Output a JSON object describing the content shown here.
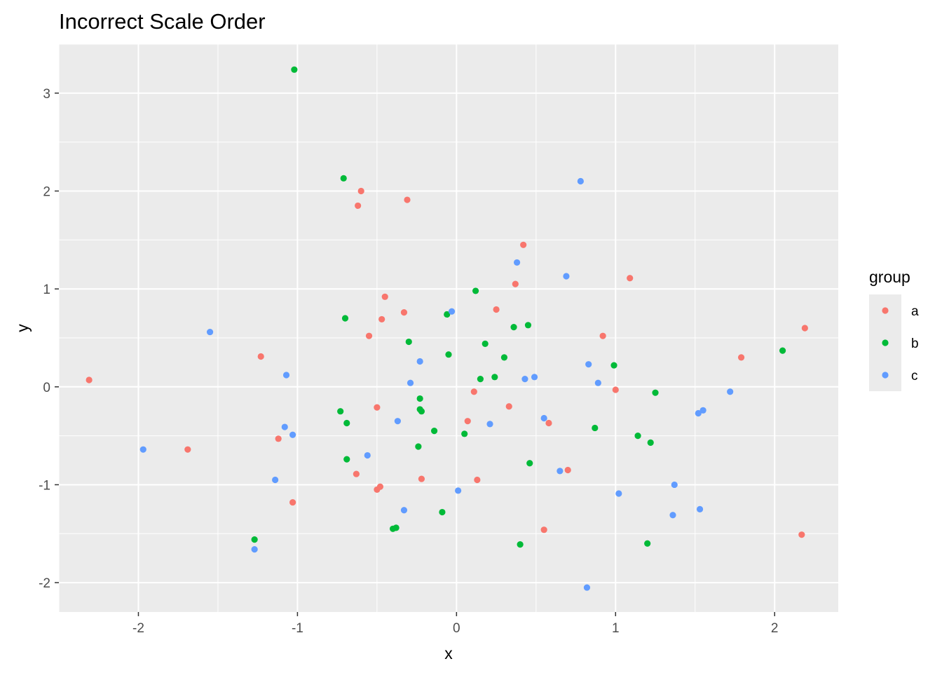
{
  "chart_data": {
    "type": "scatter",
    "title": "Incorrect Scale Order",
    "xlabel": "x",
    "ylabel": "y",
    "xlim": [
      -2.5,
      2.4
    ],
    "ylim": [
      -2.3,
      3.5
    ],
    "x_ticks": [
      -2,
      -1,
      0,
      1,
      2
    ],
    "y_ticks": [
      -2,
      -1,
      0,
      1,
      2,
      3
    ],
    "grid": true,
    "legend": {
      "title": "group",
      "position": "right"
    },
    "series": [
      {
        "name": "a",
        "color": "#F8766D",
        "points": [
          [
            -2.31,
            0.07
          ],
          [
            -1.69,
            -0.64
          ],
          [
            -1.23,
            0.31
          ],
          [
            -1.12,
            -0.53
          ],
          [
            -1.03,
            -1.18
          ],
          [
            -0.63,
            -0.89
          ],
          [
            -0.62,
            1.85
          ],
          [
            -0.6,
            2.0
          ],
          [
            -0.55,
            0.52
          ],
          [
            -0.5,
            -0.21
          ],
          [
            -0.5,
            -1.05
          ],
          [
            -0.48,
            -1.02
          ],
          [
            -0.47,
            0.69
          ],
          [
            -0.45,
            0.92
          ],
          [
            -0.33,
            0.76
          ],
          [
            -0.31,
            1.91
          ],
          [
            -0.22,
            -0.94
          ],
          [
            0.07,
            -0.35
          ],
          [
            0.11,
            -0.05
          ],
          [
            0.13,
            -0.95
          ],
          [
            0.25,
            0.79
          ],
          [
            0.33,
            -0.2
          ],
          [
            0.37,
            1.05
          ],
          [
            0.42,
            1.45
          ],
          [
            0.55,
            -1.46
          ],
          [
            0.58,
            -0.37
          ],
          [
            0.7,
            -0.85
          ],
          [
            0.92,
            0.52
          ],
          [
            1.0,
            -0.03
          ],
          [
            1.09,
            1.11
          ],
          [
            1.79,
            0.3
          ],
          [
            2.17,
            -1.51
          ],
          [
            2.19,
            0.6
          ]
        ]
      },
      {
        "name": "b",
        "color": "#00BA38",
        "points": [
          [
            -1.27,
            -1.56
          ],
          [
            -1.02,
            3.24
          ],
          [
            -0.73,
            -0.25
          ],
          [
            -0.71,
            2.13
          ],
          [
            -0.7,
            0.7
          ],
          [
            -0.69,
            -0.37
          ],
          [
            -0.69,
            -0.74
          ],
          [
            -0.4,
            -1.45
          ],
          [
            -0.38,
            -1.44
          ],
          [
            -0.3,
            0.46
          ],
          [
            -0.24,
            -0.61
          ],
          [
            -0.23,
            -0.12
          ],
          [
            -0.23,
            -0.23
          ],
          [
            -0.22,
            -0.25
          ],
          [
            -0.14,
            -0.45
          ],
          [
            -0.09,
            -1.28
          ],
          [
            -0.06,
            0.74
          ],
          [
            -0.05,
            0.33
          ],
          [
            0.05,
            -0.48
          ],
          [
            0.12,
            0.98
          ],
          [
            0.15,
            0.08
          ],
          [
            0.18,
            0.44
          ],
          [
            0.24,
            0.1
          ],
          [
            0.3,
            0.3
          ],
          [
            0.36,
            0.61
          ],
          [
            0.4,
            -1.61
          ],
          [
            0.45,
            0.63
          ],
          [
            0.46,
            -0.78
          ],
          [
            0.87,
            -0.42
          ],
          [
            0.99,
            0.22
          ],
          [
            1.14,
            -0.5
          ],
          [
            1.2,
            -1.6
          ],
          [
            1.22,
            -0.57
          ],
          [
            1.25,
            -0.06
          ],
          [
            2.05,
            0.37
          ]
        ]
      },
      {
        "name": "c",
        "color": "#619CFF",
        "points": [
          [
            -1.97,
            -0.64
          ],
          [
            -1.55,
            0.56
          ],
          [
            -1.27,
            -1.66
          ],
          [
            -1.14,
            -0.95
          ],
          [
            -1.08,
            -0.41
          ],
          [
            -1.07,
            0.12
          ],
          [
            -1.03,
            -0.49
          ],
          [
            -0.56,
            -0.7
          ],
          [
            -0.37,
            -0.35
          ],
          [
            -0.33,
            -1.26
          ],
          [
            -0.29,
            0.04
          ],
          [
            -0.23,
            0.26
          ],
          [
            -0.03,
            0.77
          ],
          [
            0.01,
            -1.06
          ],
          [
            0.21,
            -0.38
          ],
          [
            0.38,
            1.27
          ],
          [
            0.43,
            0.08
          ],
          [
            0.49,
            0.1
          ],
          [
            0.55,
            -0.32
          ],
          [
            0.65,
            -0.86
          ],
          [
            0.69,
            1.13
          ],
          [
            0.78,
            2.1
          ],
          [
            0.82,
            -2.05
          ],
          [
            0.83,
            0.23
          ],
          [
            0.89,
            0.04
          ],
          [
            1.02,
            -1.09
          ],
          [
            1.36,
            -1.31
          ],
          [
            1.37,
            -1.0
          ],
          [
            1.52,
            -0.27
          ],
          [
            1.53,
            -1.25
          ],
          [
            1.55,
            -0.24
          ],
          [
            1.72,
            -0.05
          ]
        ]
      }
    ]
  }
}
